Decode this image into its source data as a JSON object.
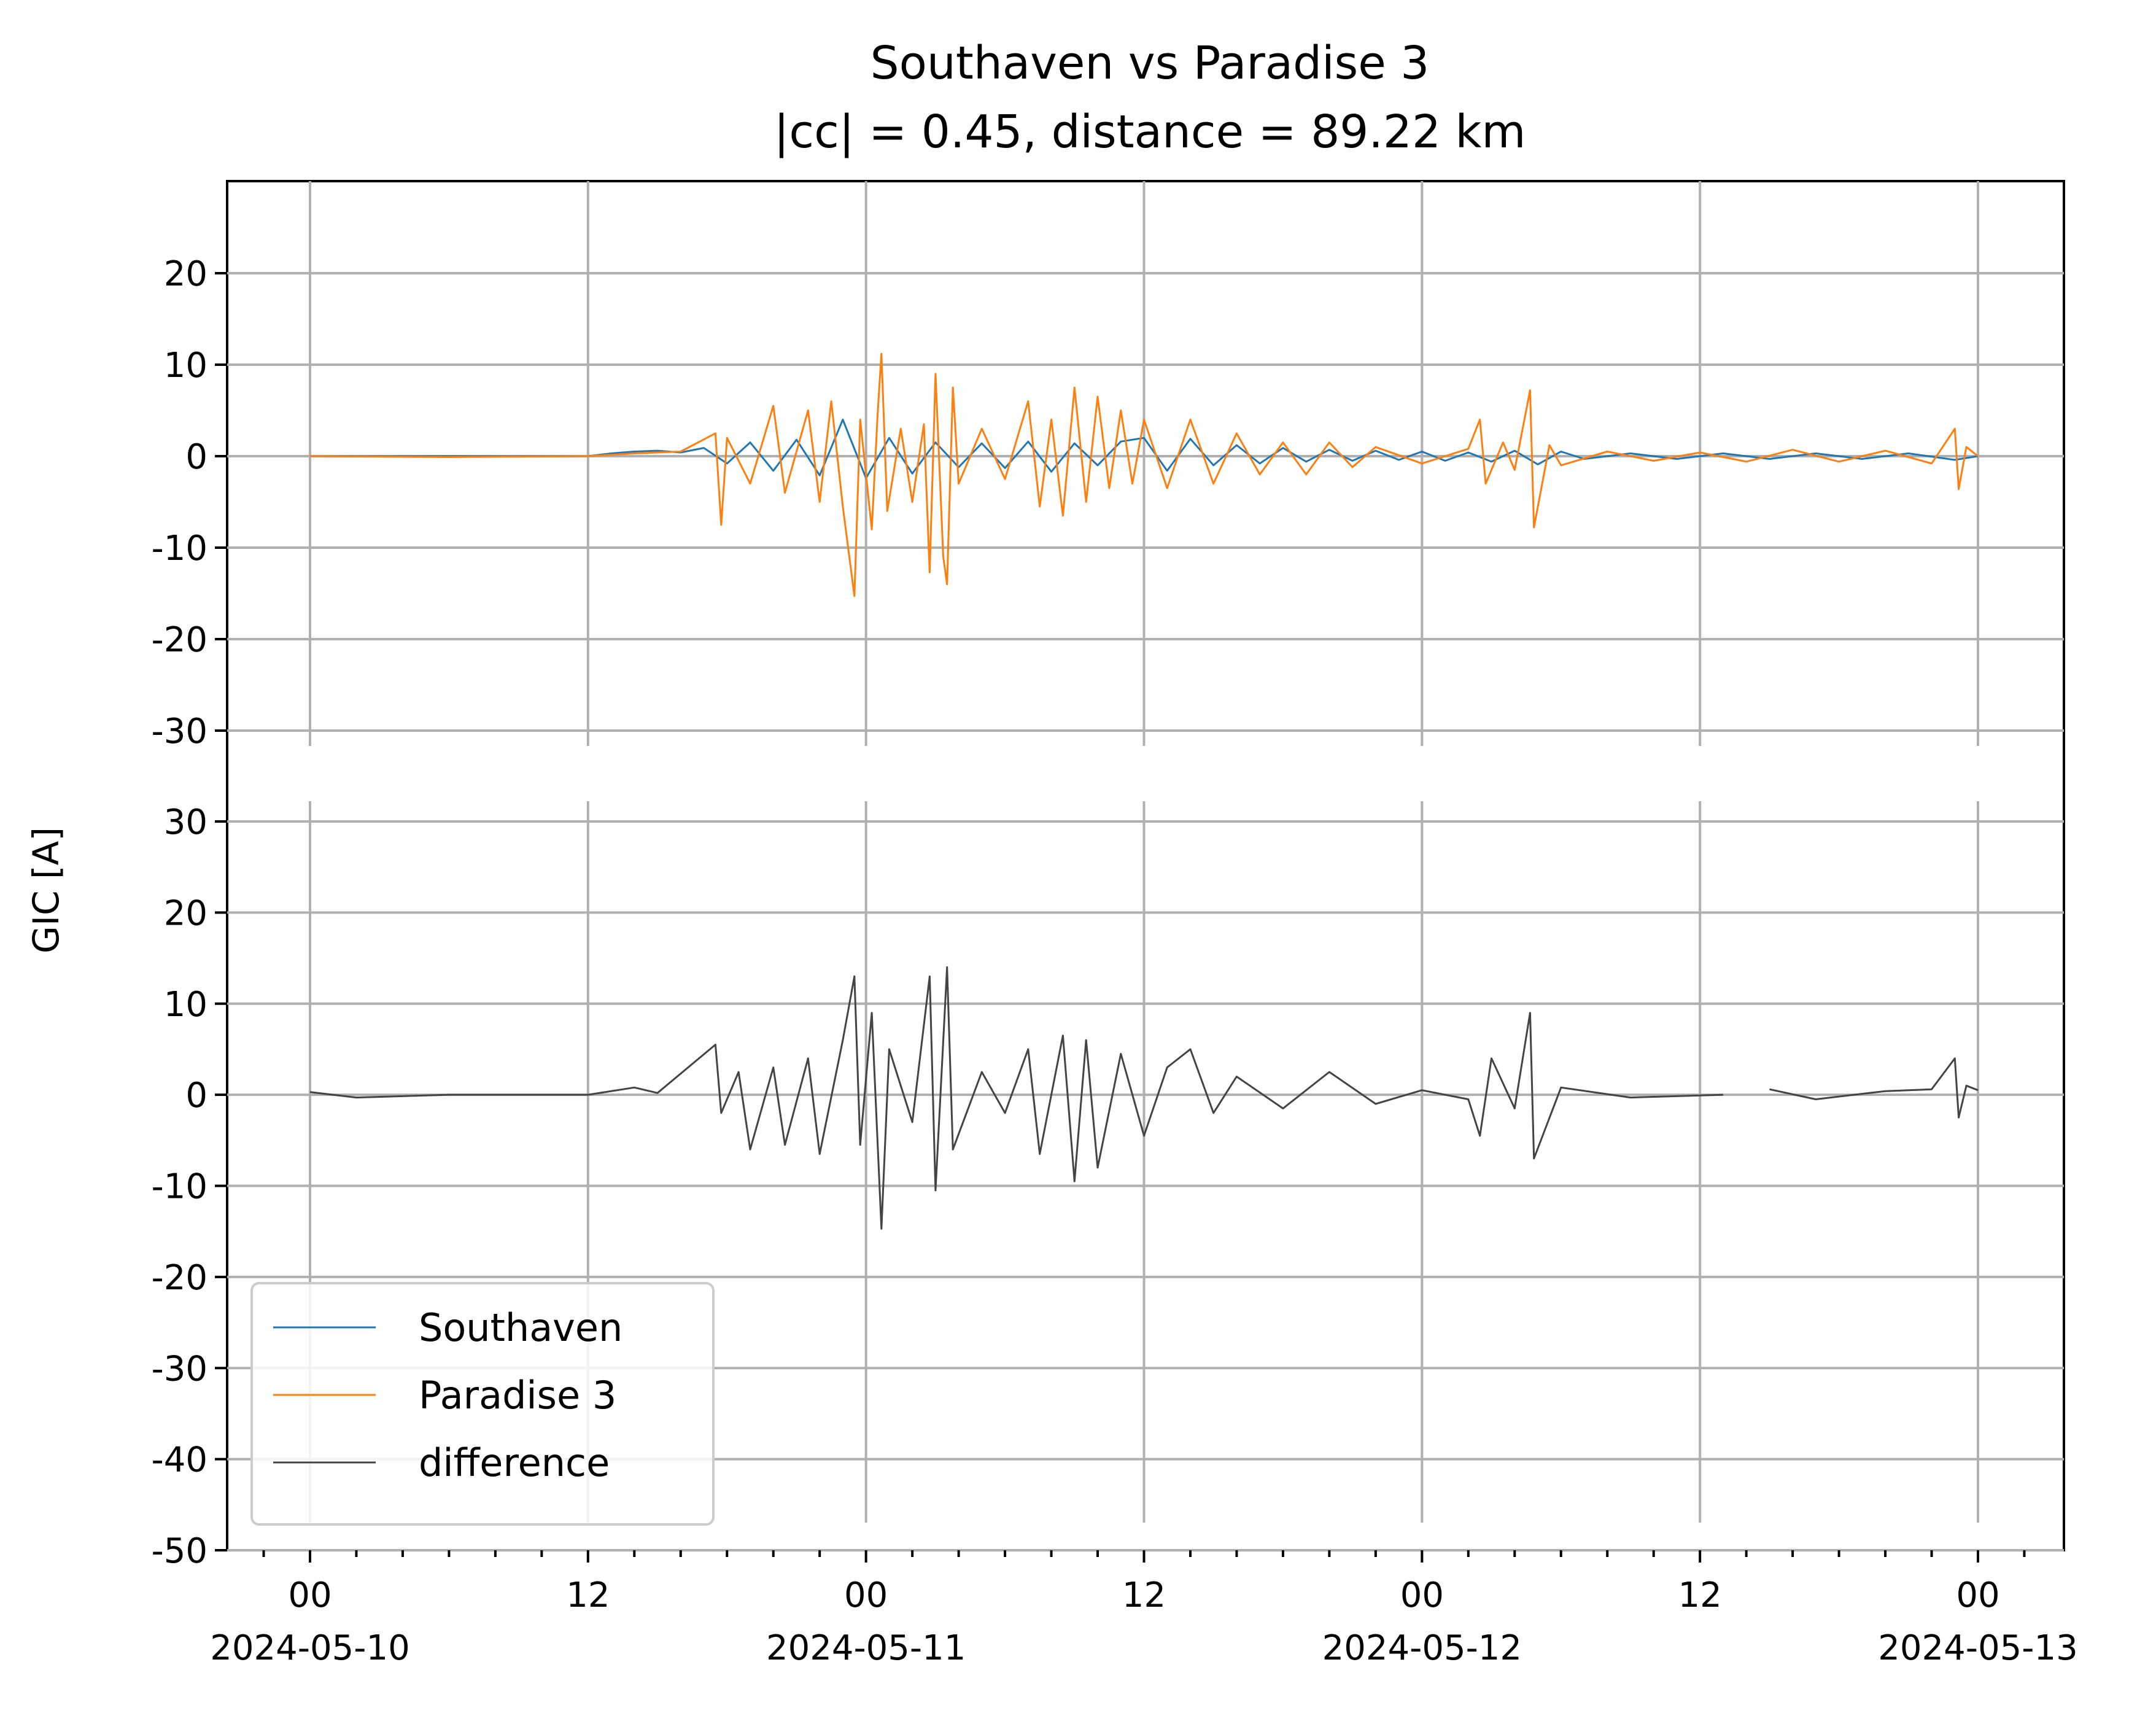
{
  "chart_data": {
    "type": "line",
    "title": "Southaven vs Paradise 3",
    "subtitle": "|cc| = 0.45, distance = 89.22 km",
    "ylabel": "GIC [A]",
    "xlabel": "",
    "x_range": [
      "2024-05-10 00:00",
      "2024-05-13 00:00"
    ],
    "x_ticks": [
      {
        "time": "2024-05-10 00:00",
        "label": "00",
        "date": "2024-05-10"
      },
      {
        "time": "2024-05-10 12:00",
        "label": "12",
        "date": ""
      },
      {
        "time": "2024-05-11 00:00",
        "label": "00",
        "date": "2024-05-11"
      },
      {
        "time": "2024-05-11 12:00",
        "label": "12",
        "date": ""
      },
      {
        "time": "2024-05-12 00:00",
        "label": "00",
        "date": "2024-05-12"
      },
      {
        "time": "2024-05-12 12:00",
        "label": "12",
        "date": ""
      },
      {
        "time": "2024-05-13 00:00",
        "label": "00",
        "date": "2024-05-13"
      }
    ],
    "grid": true,
    "legend_position": "lower-left",
    "legend": [
      "Southaven",
      "Paradise 3",
      "difference"
    ],
    "panels": [
      {
        "id": "top",
        "ylim": [
          -30,
          30
        ],
        "yticks": [
          20,
          10,
          0,
          -10,
          -20,
          -30
        ],
        "ytick_labels": [
          "20",
          "10",
          "0",
          "-10",
          "-20",
          "-30"
        ],
        "series": [
          {
            "name": "Southaven",
            "color": "#1f77b4",
            "points": [
              [
                "2024-05-10 00:00",
                0.0
              ],
              [
                "2024-05-10 06:00",
                0.0
              ],
              [
                "2024-05-10 12:00",
                0.0
              ],
              [
                "2024-05-10 13:00",
                0.3
              ],
              [
                "2024-05-10 14:00",
                0.5
              ],
              [
                "2024-05-10 15:00",
                0.6
              ],
              [
                "2024-05-10 16:00",
                0.4
              ],
              [
                "2024-05-10 17:00",
                0.9
              ],
              [
                "2024-05-10 18:00",
                -0.8
              ],
              [
                "2024-05-10 19:00",
                1.5
              ],
              [
                "2024-05-10 20:00",
                -1.6
              ],
              [
                "2024-05-10 21:00",
                1.8
              ],
              [
                "2024-05-10 22:00",
                -2.1
              ],
              [
                "2024-05-10 23:00",
                4.0
              ],
              [
                "2024-05-11 00:00",
                -2.4
              ],
              [
                "2024-05-11 01:00",
                2.0
              ],
              [
                "2024-05-11 02:00",
                -1.9
              ],
              [
                "2024-05-11 03:00",
                1.5
              ],
              [
                "2024-05-11 04:00",
                -1.2
              ],
              [
                "2024-05-11 05:00",
                1.4
              ],
              [
                "2024-05-11 06:00",
                -1.3
              ],
              [
                "2024-05-11 07:00",
                1.6
              ],
              [
                "2024-05-11 08:00",
                -1.7
              ],
              [
                "2024-05-11 09:00",
                1.4
              ],
              [
                "2024-05-11 10:00",
                -1.0
              ],
              [
                "2024-05-11 11:00",
                1.6
              ],
              [
                "2024-05-11 12:00",
                2.0
              ],
              [
                "2024-05-11 13:00",
                -1.6
              ],
              [
                "2024-05-11 14:00",
                1.9
              ],
              [
                "2024-05-11 15:00",
                -1.0
              ],
              [
                "2024-05-11 16:00",
                1.2
              ],
              [
                "2024-05-11 17:00",
                -0.8
              ],
              [
                "2024-05-11 18:00",
                0.9
              ],
              [
                "2024-05-11 19:00",
                -0.6
              ],
              [
                "2024-05-11 20:00",
                0.7
              ],
              [
                "2024-05-11 21:00",
                -0.5
              ],
              [
                "2024-05-11 22:00",
                0.6
              ],
              [
                "2024-05-11 23:00",
                -0.4
              ],
              [
                "2024-05-12 00:00",
                0.5
              ],
              [
                "2024-05-12 01:00",
                -0.5
              ],
              [
                "2024-05-12 02:00",
                0.4
              ],
              [
                "2024-05-12 03:00",
                -0.6
              ],
              [
                "2024-05-12 04:00",
                0.6
              ],
              [
                "2024-05-12 05:00",
                -0.9
              ],
              [
                "2024-05-12 06:00",
                0.5
              ],
              [
                "2024-05-12 07:00",
                -0.3
              ],
              [
                "2024-05-12 09:00",
                0.3
              ],
              [
                "2024-05-12 11:00",
                -0.3
              ],
              [
                "2024-05-12 13:00",
                0.3
              ],
              [
                "2024-05-12 15:00",
                -0.3
              ],
              [
                "2024-05-12 17:00",
                0.3
              ],
              [
                "2024-05-12 19:00",
                -0.3
              ],
              [
                "2024-05-12 21:00",
                0.3
              ],
              [
                "2024-05-12 23:00",
                -0.4
              ],
              [
                "2024-05-13 00:00",
                0.0
              ]
            ]
          },
          {
            "name": "Paradise 3",
            "color": "#ff7f0e",
            "points": [
              [
                "2024-05-10 00:00",
                0.0
              ],
              [
                "2024-05-10 06:00",
                -0.1
              ],
              [
                "2024-05-10 12:00",
                0.0
              ],
              [
                "2024-05-10 14:00",
                0.3
              ],
              [
                "2024-05-10 16:00",
                0.5
              ],
              [
                "2024-05-10 17:30",
                2.5
              ],
              [
                "2024-05-10 17:45",
                -7.5
              ],
              [
                "2024-05-10 18:00",
                2.0
              ],
              [
                "2024-05-10 19:00",
                -3.0
              ],
              [
                "2024-05-10 20:00",
                5.5
              ],
              [
                "2024-05-10 20:30",
                -4.0
              ],
              [
                "2024-05-10 21:30",
                5.0
              ],
              [
                "2024-05-10 22:00",
                -5.0
              ],
              [
                "2024-05-10 22:30",
                6.0
              ],
              [
                "2024-05-10 23:00",
                -5.5
              ],
              [
                "2024-05-10 23:30",
                -15.3
              ],
              [
                "2024-05-10 23:45",
                4.0
              ],
              [
                "2024-05-11 00:15",
                -8.0
              ],
              [
                "2024-05-11 00:30",
                4.5
              ],
              [
                "2024-05-11 00:40",
                11.2
              ],
              [
                "2024-05-11 00:55",
                -6.0
              ],
              [
                "2024-05-11 01:30",
                3.0
              ],
              [
                "2024-05-11 02:00",
                -5.0
              ],
              [
                "2024-05-11 02:30",
                3.5
              ],
              [
                "2024-05-11 02:45",
                -12.7
              ],
              [
                "2024-05-11 03:00",
                9.0
              ],
              [
                "2024-05-11 03:20",
                -11.0
              ],
              [
                "2024-05-11 03:30",
                -14.0
              ],
              [
                "2024-05-11 03:45",
                7.5
              ],
              [
                "2024-05-11 04:00",
                -3.0
              ],
              [
                "2024-05-11 05:00",
                3.0
              ],
              [
                "2024-05-11 06:00",
                -2.5
              ],
              [
                "2024-05-11 07:00",
                6.0
              ],
              [
                "2024-05-11 07:30",
                -5.5
              ],
              [
                "2024-05-11 08:00",
                4.0
              ],
              [
                "2024-05-11 08:30",
                -6.5
              ],
              [
                "2024-05-11 09:00",
                7.5
              ],
              [
                "2024-05-11 09:30",
                -5.0
              ],
              [
                "2024-05-11 10:00",
                6.5
              ],
              [
                "2024-05-11 10:30",
                -3.5
              ],
              [
                "2024-05-11 11:00",
                5.0
              ],
              [
                "2024-05-11 11:30",
                -3.0
              ],
              [
                "2024-05-11 12:00",
                4.0
              ],
              [
                "2024-05-11 13:00",
                -3.5
              ],
              [
                "2024-05-11 14:00",
                4.0
              ],
              [
                "2024-05-11 15:00",
                -3.0
              ],
              [
                "2024-05-11 16:00",
                2.5
              ],
              [
                "2024-05-11 17:00",
                -2.0
              ],
              [
                "2024-05-11 18:00",
                1.5
              ],
              [
                "2024-05-11 19:00",
                -2.0
              ],
              [
                "2024-05-11 20:00",
                1.5
              ],
              [
                "2024-05-11 21:00",
                -1.2
              ],
              [
                "2024-05-11 22:00",
                1.0
              ],
              [
                "2024-05-12 00:00",
                -0.8
              ],
              [
                "2024-05-12 02:00",
                0.8
              ],
              [
                "2024-05-12 02:30",
                4.0
              ],
              [
                "2024-05-12 02:45",
                -3.0
              ],
              [
                "2024-05-12 03:30",
                1.5
              ],
              [
                "2024-05-12 04:00",
                -1.5
              ],
              [
                "2024-05-12 04:40",
                7.2
              ],
              [
                "2024-05-12 04:50",
                -7.8
              ],
              [
                "2024-05-12 05:30",
                1.2
              ],
              [
                "2024-05-12 06:00",
                -1.0
              ],
              [
                "2024-05-12 08:00",
                0.5
              ],
              [
                "2024-05-12 10:00",
                -0.5
              ],
              [
                "2024-05-12 12:00",
                0.4
              ],
              [
                "2024-05-12 14:00",
                -0.6
              ],
              [
                "2024-05-12 16:00",
                0.7
              ],
              [
                "2024-05-12 18:00",
                -0.6
              ],
              [
                "2024-05-12 20:00",
                0.6
              ],
              [
                "2024-05-12 22:00",
                -0.8
              ],
              [
                "2024-05-12 23:00",
                3.0
              ],
              [
                "2024-05-12 23:10",
                -3.6
              ],
              [
                "2024-05-12 23:30",
                1.0
              ],
              [
                "2024-05-13 00:00",
                0.0
              ]
            ]
          }
        ]
      },
      {
        "id": "bottom",
        "ylim": [
          -50,
          32
        ],
        "yticks": [
          30,
          20,
          10,
          0,
          -10,
          -20,
          -30,
          -40,
          -50
        ],
        "ytick_labels": [
          "30",
          "20",
          "10",
          "0",
          "-10",
          "-20",
          "-30",
          "-40",
          "-50"
        ],
        "series": [
          {
            "name": "difference",
            "color": "#444444",
            "points": [
              [
                "2024-05-10 00:00",
                0.3
              ],
              [
                "2024-05-10 02:00",
                -0.3
              ],
              [
                "2024-05-10 06:00",
                0.0
              ],
              [
                "2024-05-10 12:00",
                0.0
              ],
              [
                "2024-05-10 14:00",
                0.8
              ],
              [
                "2024-05-10 15:00",
                0.2
              ],
              [
                "2024-05-10 17:30",
                5.5
              ],
              [
                "2024-05-10 17:45",
                -2.0
              ],
              [
                "2024-05-10 18:30",
                2.5
              ],
              [
                "2024-05-10 19:00",
                -6.0
              ],
              [
                "2024-05-10 20:00",
                3.0
              ],
              [
                "2024-05-10 20:30",
                -5.5
              ],
              [
                "2024-05-10 21:30",
                4.0
              ],
              [
                "2024-05-10 22:00",
                -6.5
              ],
              [
                "2024-05-10 23:00",
                6.0
              ],
              [
                "2024-05-10 23:30",
                13.0
              ],
              [
                "2024-05-10 23:45",
                -5.5
              ],
              [
                "2024-05-11 00:15",
                9.0
              ],
              [
                "2024-05-11 00:40",
                -14.7
              ],
              [
                "2024-05-11 01:00",
                5.0
              ],
              [
                "2024-05-11 02:00",
                -3.0
              ],
              [
                "2024-05-11 02:45",
                13.0
              ],
              [
                "2024-05-11 03:00",
                -10.5
              ],
              [
                "2024-05-11 03:30",
                14.0
              ],
              [
                "2024-05-11 03:45",
                -6.0
              ],
              [
                "2024-05-11 05:00",
                2.5
              ],
              [
                "2024-05-11 06:00",
                -2.0
              ],
              [
                "2024-05-11 07:00",
                5.0
              ],
              [
                "2024-05-11 07:30",
                -6.5
              ],
              [
                "2024-05-11 08:30",
                6.5
              ],
              [
                "2024-05-11 09:00",
                -9.5
              ],
              [
                "2024-05-11 09:30",
                6.0
              ],
              [
                "2024-05-11 10:00",
                -8.0
              ],
              [
                "2024-05-11 11:00",
                4.5
              ],
              [
                "2024-05-11 12:00",
                -4.5
              ],
              [
                "2024-05-11 13:00",
                3.0
              ],
              [
                "2024-05-11 14:00",
                5.0
              ],
              [
                "2024-05-11 15:00",
                -2.0
              ],
              [
                "2024-05-11 16:00",
                2.0
              ],
              [
                "2024-05-11 18:00",
                -1.5
              ],
              [
                "2024-05-11 20:00",
                2.5
              ],
              [
                "2024-05-11 22:00",
                -1.0
              ],
              [
                "2024-05-12 00:00",
                0.5
              ],
              [
                "2024-05-12 02:00",
                -0.5
              ],
              [
                "2024-05-12 02:30",
                -4.5
              ],
              [
                "2024-05-12 03:00",
                4.0
              ],
              [
                "2024-05-12 04:00",
                -1.5
              ],
              [
                "2024-05-12 04:40",
                9.0
              ],
              [
                "2024-05-12 04:50",
                -7.0
              ],
              [
                "2024-05-12 06:00",
                0.8
              ],
              [
                "2024-05-12 09:00",
                -0.3
              ],
              [
                "2024-05-12 13:00",
                0.0
              ],
              [
                "2024-05-12 14:00",
                null
              ],
              [
                "2024-05-12 15:00",
                0.6
              ],
              [
                "2024-05-12 17:00",
                -0.5
              ],
              [
                "2024-05-12 20:00",
                0.4
              ],
              [
                "2024-05-12 22:00",
                0.6
              ],
              [
                "2024-05-12 23:00",
                4.0
              ],
              [
                "2024-05-12 23:10",
                -2.5
              ],
              [
                "2024-05-12 23:30",
                1.0
              ],
              [
                "2024-05-13 00:00",
                0.5
              ]
            ]
          }
        ]
      }
    ]
  }
}
